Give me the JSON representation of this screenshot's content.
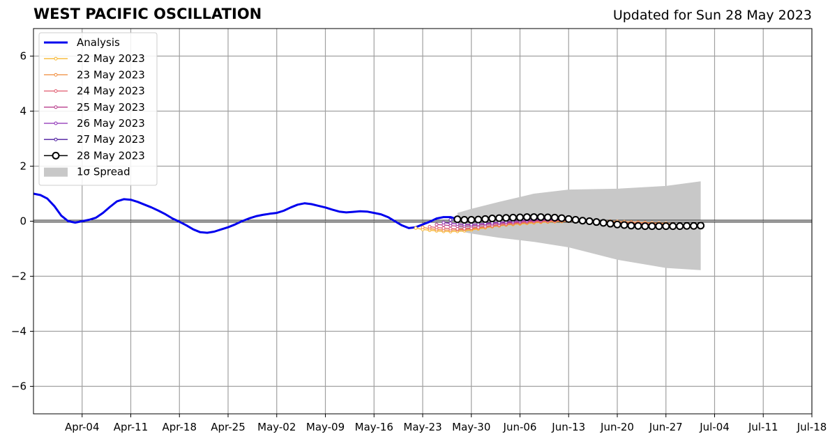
{
  "header": {
    "title": "WEST PACIFIC OSCILLATION",
    "updated": "Updated for Sun 28 May 2023"
  },
  "chart_data": {
    "type": "line",
    "title": "WEST PACIFIC OSCILLATION",
    "xlabel": "",
    "ylabel": "",
    "x_axis": {
      "type": "date",
      "range": [
        "2023-03-28",
        "2023-07-18"
      ],
      "tick_labels": [
        "Apr-04",
        "Apr-11",
        "Apr-18",
        "Apr-25",
        "May-02",
        "May-09",
        "May-16",
        "May-23",
        "May-30",
        "Jun-06",
        "Jun-13",
        "Jun-20",
        "Jun-27",
        "Jul-04",
        "Jul-11",
        "Jul-18"
      ]
    },
    "y_axis": {
      "range": [
        -7,
        7
      ],
      "ticks": [
        -6,
        -4,
        -2,
        0,
        2,
        4,
        6
      ],
      "tick_labels": [
        "−6",
        "−4",
        "−2",
        "0",
        "2",
        "4",
        "6"
      ]
    },
    "grid": true,
    "legend": {
      "position": "top-left",
      "entries": [
        "Analysis",
        "22 May 2023",
        "23 May 2023",
        "24 May 2023",
        "25 May 2023",
        "26 May 2023",
        "27 May 2023",
        "28 May 2023",
        "1σ Spread"
      ]
    },
    "series": [
      {
        "name": "Analysis",
        "color": "#0000ee",
        "style": "thick-line",
        "x": [
          "2023-03-28",
          "2023-03-29",
          "2023-03-30",
          "2023-03-31",
          "2023-04-01",
          "2023-04-02",
          "2023-04-03",
          "2023-04-04",
          "2023-04-05",
          "2023-04-06",
          "2023-04-07",
          "2023-04-08",
          "2023-04-09",
          "2023-04-10",
          "2023-04-11",
          "2023-04-12",
          "2023-04-13",
          "2023-04-14",
          "2023-04-15",
          "2023-04-16",
          "2023-04-17",
          "2023-04-18",
          "2023-04-19",
          "2023-04-20",
          "2023-04-21",
          "2023-04-22",
          "2023-04-23",
          "2023-04-24",
          "2023-04-25",
          "2023-04-26",
          "2023-04-27",
          "2023-04-28",
          "2023-04-29",
          "2023-04-30",
          "2023-05-01",
          "2023-05-02",
          "2023-05-03",
          "2023-05-04",
          "2023-05-05",
          "2023-05-06",
          "2023-05-07",
          "2023-05-08",
          "2023-05-09",
          "2023-05-10",
          "2023-05-11",
          "2023-05-12",
          "2023-05-13",
          "2023-05-14",
          "2023-05-15",
          "2023-05-16",
          "2023-05-17",
          "2023-05-18",
          "2023-05-19",
          "2023-05-20",
          "2023-05-21",
          "2023-05-22",
          "2023-05-23",
          "2023-05-24",
          "2023-05-25",
          "2023-05-26",
          "2023-05-27",
          "2023-05-28"
        ],
        "y": [
          1.0,
          0.95,
          0.82,
          0.55,
          0.2,
          0.0,
          -0.05,
          0.0,
          0.05,
          0.13,
          0.3,
          0.52,
          0.72,
          0.8,
          0.78,
          0.7,
          0.6,
          0.5,
          0.38,
          0.25,
          0.1,
          -0.02,
          -0.15,
          -0.3,
          -0.4,
          -0.42,
          -0.38,
          -0.3,
          -0.22,
          -0.12,
          0.0,
          0.1,
          0.18,
          0.23,
          0.27,
          0.3,
          0.38,
          0.5,
          0.6,
          0.65,
          0.62,
          0.56,
          0.5,
          0.42,
          0.35,
          0.32,
          0.34,
          0.36,
          0.35,
          0.3,
          0.25,
          0.15,
          0.0,
          -0.15,
          -0.25,
          -0.22,
          -0.12,
          -0.02,
          0.1,
          0.15,
          0.15,
          0.07
        ]
      },
      {
        "name": "22 May 2023",
        "color": "#f7b731",
        "style": "small-dots",
        "x": [
          "2023-05-22",
          "2023-05-23",
          "2023-05-24",
          "2023-05-25",
          "2023-05-26",
          "2023-05-27",
          "2023-05-28",
          "2023-05-29",
          "2023-05-30",
          "2023-05-31",
          "2023-06-01",
          "2023-06-02",
          "2023-06-03",
          "2023-06-04",
          "2023-06-05",
          "2023-06-06",
          "2023-06-07",
          "2023-06-08",
          "2023-06-09",
          "2023-06-10",
          "2023-06-11",
          "2023-06-12",
          "2023-06-13"
        ],
        "y": [
          -0.25,
          -0.3,
          -0.33,
          -0.35,
          -0.37,
          -0.38,
          -0.37,
          -0.35,
          -0.32,
          -0.28,
          -0.24,
          -0.2,
          -0.17,
          -0.14,
          -0.12,
          -0.1,
          -0.08,
          -0.06,
          -0.04,
          -0.03,
          -0.02,
          -0.01,
          0.0
        ]
      },
      {
        "name": "23 May 2023",
        "color": "#f08c3c",
        "style": "small-dots",
        "x": [
          "2023-05-23",
          "2023-05-24",
          "2023-05-25",
          "2023-05-26",
          "2023-05-27",
          "2023-05-28",
          "2023-05-29",
          "2023-05-30",
          "2023-05-31",
          "2023-06-01",
          "2023-06-02",
          "2023-06-03",
          "2023-06-04",
          "2023-06-05",
          "2023-06-06",
          "2023-06-07",
          "2023-06-08",
          "2023-06-09",
          "2023-06-10",
          "2023-06-11",
          "2023-06-12",
          "2023-06-13",
          "2023-06-14",
          "2023-06-15",
          "2023-06-16",
          "2023-06-17",
          "2023-06-18",
          "2023-06-19",
          "2023-06-20",
          "2023-06-21",
          "2023-06-22",
          "2023-06-23",
          "2023-06-24",
          "2023-06-25",
          "2023-06-26",
          "2023-06-27",
          "2023-06-28"
        ],
        "y": [
          -0.22,
          -0.27,
          -0.3,
          -0.32,
          -0.33,
          -0.32,
          -0.3,
          -0.28,
          -0.25,
          -0.22,
          -0.19,
          -0.16,
          -0.13,
          -0.1,
          -0.08,
          -0.06,
          -0.04,
          -0.03,
          -0.02,
          -0.01,
          0.0,
          0.0,
          0.0,
          0.0,
          0.0,
          0.0,
          0.0,
          0.0,
          -0.01,
          -0.02,
          -0.03,
          -0.04,
          -0.05,
          -0.06,
          -0.07,
          -0.08,
          -0.1
        ]
      },
      {
        "name": "24 May 2023",
        "color": "#e05a6e",
        "style": "small-dots",
        "x": [
          "2023-05-24",
          "2023-05-25",
          "2023-05-26",
          "2023-05-27",
          "2023-05-28",
          "2023-05-29",
          "2023-05-30",
          "2023-05-31",
          "2023-06-01",
          "2023-06-02",
          "2023-06-03",
          "2023-06-04",
          "2023-06-05",
          "2023-06-06",
          "2023-06-07",
          "2023-06-08",
          "2023-06-09",
          "2023-06-10",
          "2023-06-11",
          "2023-06-12",
          "2023-06-13",
          "2023-06-14",
          "2023-06-15",
          "2023-06-16",
          "2023-06-17",
          "2023-06-18",
          "2023-06-19",
          "2023-06-20",
          "2023-06-21",
          "2023-06-22",
          "2023-06-23",
          "2023-06-24",
          "2023-06-25",
          "2023-06-26",
          "2023-06-27",
          "2023-06-28"
        ],
        "y": [
          -0.2,
          -0.23,
          -0.25,
          -0.27,
          -0.28,
          -0.27,
          -0.25,
          -0.22,
          -0.19,
          -0.16,
          -0.13,
          -0.1,
          -0.07,
          -0.05,
          -0.03,
          -0.01,
          0.0,
          0.01,
          0.02,
          0.02,
          0.02,
          0.01,
          0.0,
          -0.01,
          -0.02,
          -0.03,
          -0.04,
          -0.05,
          -0.06,
          -0.07,
          -0.08,
          -0.09,
          -0.1,
          -0.11,
          -0.12,
          -0.13
        ]
      },
      {
        "name": "25 May 2023",
        "color": "#b83d8c",
        "style": "small-dots",
        "x": [
          "2023-05-25",
          "2023-05-26",
          "2023-05-27",
          "2023-05-28",
          "2023-05-29",
          "2023-05-30",
          "2023-05-31",
          "2023-06-01",
          "2023-06-02",
          "2023-06-03",
          "2023-06-04",
          "2023-06-05",
          "2023-06-06",
          "2023-06-07",
          "2023-06-08",
          "2023-06-09",
          "2023-06-10",
          "2023-06-11",
          "2023-06-12",
          "2023-06-13"
        ],
        "y": [
          -0.12,
          -0.14,
          -0.16,
          -0.18,
          -0.18,
          -0.17,
          -0.15,
          -0.12,
          -0.1,
          -0.08,
          -0.06,
          -0.04,
          -0.02,
          0.0,
          0.02,
          0.03,
          0.04,
          0.04,
          0.03,
          0.02
        ]
      },
      {
        "name": "26 May 2023",
        "color": "#8a2bb5",
        "style": "small-dots",
        "x": [
          "2023-05-26",
          "2023-05-27",
          "2023-05-28",
          "2023-05-29",
          "2023-05-30",
          "2023-05-31",
          "2023-06-01",
          "2023-06-02",
          "2023-06-03",
          "2023-06-04",
          "2023-06-05",
          "2023-06-06",
          "2023-06-07",
          "2023-06-08",
          "2023-06-09",
          "2023-06-10",
          "2023-06-11",
          "2023-06-12",
          "2023-06-13"
        ],
        "y": [
          -0.05,
          -0.08,
          -0.1,
          -0.12,
          -0.12,
          -0.1,
          -0.08,
          -0.06,
          -0.04,
          -0.02,
          0.0,
          0.02,
          0.04,
          0.05,
          0.06,
          0.06,
          0.05,
          0.04,
          0.03
        ]
      },
      {
        "name": "27 May 2023",
        "color": "#4b1a9e",
        "style": "small-dots",
        "x": [
          "2023-05-27",
          "2023-05-28",
          "2023-05-29",
          "2023-05-30",
          "2023-05-31",
          "2023-06-01",
          "2023-06-02",
          "2023-06-03",
          "2023-06-04",
          "2023-06-05",
          "2023-06-06",
          "2023-06-07",
          "2023-06-08",
          "2023-06-09",
          "2023-06-10",
          "2023-06-11",
          "2023-06-12"
        ],
        "y": [
          0.05,
          0.03,
          0.01,
          0.0,
          0.01,
          0.03,
          0.05,
          0.07,
          0.09,
          0.1,
          0.11,
          0.12,
          0.12,
          0.11,
          0.1,
          0.08,
          0.06
        ]
      },
      {
        "name": "28 May 2023",
        "color": "#000000",
        "style": "open-circles",
        "x": [
          "2023-05-28",
          "2023-05-29",
          "2023-05-30",
          "2023-05-31",
          "2023-06-01",
          "2023-06-02",
          "2023-06-03",
          "2023-06-04",
          "2023-06-05",
          "2023-06-06",
          "2023-06-07",
          "2023-06-08",
          "2023-06-09",
          "2023-06-10",
          "2023-06-11",
          "2023-06-12",
          "2023-06-13",
          "2023-06-14",
          "2023-06-15",
          "2023-06-16",
          "2023-06-17",
          "2023-06-18",
          "2023-06-19",
          "2023-06-20",
          "2023-06-21",
          "2023-06-22",
          "2023-06-23",
          "2023-06-24",
          "2023-06-25",
          "2023-06-26",
          "2023-06-27",
          "2023-06-28",
          "2023-06-29",
          "2023-06-30",
          "2023-07-01",
          "2023-07-02"
        ],
        "y": [
          0.07,
          0.05,
          0.05,
          0.06,
          0.08,
          0.1,
          0.11,
          0.12,
          0.13,
          0.14,
          0.15,
          0.15,
          0.15,
          0.14,
          0.13,
          0.11,
          0.08,
          0.05,
          0.02,
          0.0,
          -0.03,
          -0.06,
          -0.09,
          -0.12,
          -0.14,
          -0.16,
          -0.17,
          -0.18,
          -0.18,
          -0.18,
          -0.18,
          -0.18,
          -0.18,
          -0.17,
          -0.17,
          -0.16
        ]
      },
      {
        "name": "1σ Spread",
        "color": "#c8c8c8",
        "style": "band",
        "x": [
          "2023-05-28",
          "2023-05-30",
          "2023-06-03",
          "2023-06-08",
          "2023-06-13",
          "2023-06-20",
          "2023-06-27",
          "2023-07-02"
        ],
        "upper": [
          0.3,
          0.45,
          0.7,
          1.0,
          1.15,
          1.18,
          1.28,
          1.45
        ],
        "lower": [
          -0.35,
          -0.45,
          -0.6,
          -0.75,
          -0.95,
          -1.4,
          -1.7,
          -1.78
        ]
      }
    ]
  }
}
